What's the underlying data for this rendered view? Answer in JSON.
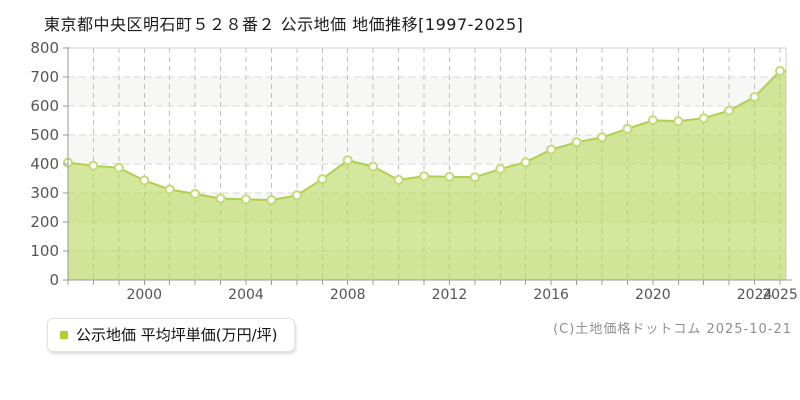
{
  "chart_data": {
    "type": "area",
    "title": "東京都中央区明石町５２８番２ 公示地価 地価推移[1997-2025]",
    "series_name": "公示地価 平均坪単価(万円/坪)",
    "unit": "万円/坪",
    "x": [
      1997,
      1998,
      1999,
      2000,
      2001,
      2002,
      2003,
      2004,
      2005,
      2006,
      2007,
      2008,
      2009,
      2010,
      2011,
      2012,
      2013,
      2014,
      2015,
      2016,
      2017,
      2018,
      2019,
      2020,
      2021,
      2022,
      2023,
      2024,
      2025
    ],
    "values": [
      405,
      394,
      387,
      343,
      312,
      297,
      281,
      278,
      276,
      292,
      348,
      413,
      391,
      345,
      358,
      356,
      354,
      383,
      406,
      450,
      475,
      492,
      521,
      551,
      548,
      558,
      584,
      631,
      721
    ],
    "ylim": [
      0,
      800
    ],
    "ytick_interval": 100,
    "xtick_labels": [
      "2000",
      "2004",
      "2008",
      "2012",
      "2016",
      "2020",
      "2024",
      "2025"
    ],
    "grid": "dashed",
    "legend_position": "bottom-left",
    "colors": {
      "area_fill": "rgba(185,215,90,0.6)",
      "line": "#aed04e",
      "marker_fill": "#ffffff",
      "marker_stroke": "#c2db74",
      "band_alt": "#f7f7f5",
      "band_main": "#ffffff",
      "grid_h": "#d8d8d8",
      "grid_v": "#c0c0c0",
      "border": "#cfcfcf",
      "axis": "#9a9a9a",
      "tick_text": "#555555",
      "legend_marker": "#b2cf2e"
    }
  },
  "footer": {
    "copyright": "(C)土地価格ドットコム 2025-10-21"
  }
}
